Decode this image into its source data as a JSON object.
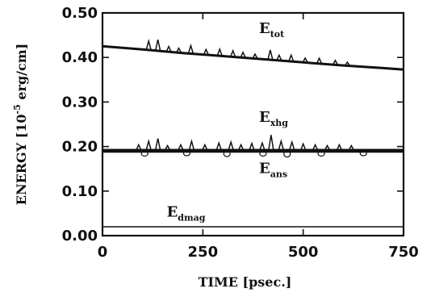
{
  "chart_data": {
    "type": "line",
    "xlabel": "TIME [psec.]",
    "ylabel": {
      "prefix": "ENERGY [10",
      "exponent": "-5",
      "suffix": " erg/cm]"
    },
    "xlim": [
      0,
      750
    ],
    "ylim": [
      0.0,
      0.5
    ],
    "x_ticks": [
      {
        "value": 0,
        "label": "0"
      },
      {
        "value": 250,
        "label": "250"
      },
      {
        "value": 500,
        "label": "500"
      },
      {
        "value": 750,
        "label": "750"
      }
    ],
    "y_ticks": [
      {
        "value": 0.0,
        "label": "0.00"
      },
      {
        "value": 0.1,
        "label": "0.10"
      },
      {
        "value": 0.2,
        "label": "0.20"
      },
      {
        "value": 0.3,
        "label": "0.30"
      },
      {
        "value": 0.4,
        "label": "0.40"
      },
      {
        "value": 0.5,
        "label": "0.50"
      }
    ],
    "grid": false,
    "series": [
      {
        "name": "E_tot",
        "label_main": "E",
        "label_sub": "tot",
        "x": [
          0,
          100,
          200,
          300,
          400,
          500,
          600,
          700,
          750
        ],
        "y": [
          0.425,
          0.418,
          0.41,
          0.403,
          0.396,
          0.389,
          0.382,
          0.376,
          0.373
        ],
        "spikes": [
          {
            "x": 115,
            "height": 0.02
          },
          {
            "x": 138,
            "height": 0.025
          },
          {
            "x": 165,
            "height": 0.012
          },
          {
            "x": 190,
            "height": 0.01
          },
          {
            "x": 220,
            "height": 0.018
          },
          {
            "x": 258,
            "height": 0.012
          },
          {
            "x": 292,
            "height": 0.015
          },
          {
            "x": 325,
            "height": 0.014
          },
          {
            "x": 350,
            "height": 0.012
          },
          {
            "x": 380,
            "height": 0.01
          },
          {
            "x": 418,
            "height": 0.022
          },
          {
            "x": 440,
            "height": 0.012
          },
          {
            "x": 470,
            "height": 0.014
          },
          {
            "x": 505,
            "height": 0.01
          },
          {
            "x": 540,
            "height": 0.012
          },
          {
            "x": 580,
            "height": 0.01
          },
          {
            "x": 610,
            "height": 0.008
          }
        ]
      },
      {
        "name": "E_xhg",
        "label_main": "E",
        "label_sub": "xhg",
        "x": [
          0,
          750
        ],
        "y": [
          0.192,
          0.192
        ],
        "spikes": [
          {
            "x": 90,
            "height": 0.012
          },
          {
            "x": 115,
            "height": 0.02
          },
          {
            "x": 138,
            "height": 0.026
          },
          {
            "x": 162,
            "height": 0.01
          },
          {
            "x": 195,
            "height": 0.012
          },
          {
            "x": 222,
            "height": 0.02
          },
          {
            "x": 255,
            "height": 0.012
          },
          {
            "x": 290,
            "height": 0.016
          },
          {
            "x": 320,
            "height": 0.018
          },
          {
            "x": 345,
            "height": 0.012
          },
          {
            "x": 372,
            "height": 0.015
          },
          {
            "x": 398,
            "height": 0.016
          },
          {
            "x": 420,
            "height": 0.034
          },
          {
            "x": 445,
            "height": 0.02
          },
          {
            "x": 472,
            "height": 0.018
          },
          {
            "x": 500,
            "height": 0.014
          },
          {
            "x": 530,
            "height": 0.012
          },
          {
            "x": 560,
            "height": 0.01
          },
          {
            "x": 590,
            "height": 0.012
          },
          {
            "x": 620,
            "height": 0.01
          }
        ]
      },
      {
        "name": "E_ans",
        "label_main": "E",
        "label_sub": "ans",
        "x": [
          0,
          750
        ],
        "y": [
          0.189,
          0.189
        ],
        "spikes": [
          {
            "x": 105,
            "height": -0.006
          },
          {
            "x": 210,
            "height": -0.005
          },
          {
            "x": 310,
            "height": -0.007
          },
          {
            "x": 400,
            "height": -0.006
          },
          {
            "x": 460,
            "height": -0.008
          },
          {
            "x": 545,
            "height": -0.006
          },
          {
            "x": 650,
            "height": -0.005
          }
        ]
      },
      {
        "name": "E_dmag",
        "label_main": "E",
        "label_sub": "dmag",
        "x": [
          0,
          750
        ],
        "y": [
          0.02,
          0.02
        ],
        "spikes": []
      }
    ],
    "annotations": [
      {
        "series": "E_tot",
        "at_x": 390,
        "at_y": 0.455
      },
      {
        "series": "E_xhg",
        "at_x": 390,
        "at_y": 0.255
      },
      {
        "series": "E_ans",
        "at_x": 390,
        "at_y": 0.14
      },
      {
        "series": "E_dmag",
        "at_x": 160,
        "at_y": 0.043
      }
    ]
  }
}
